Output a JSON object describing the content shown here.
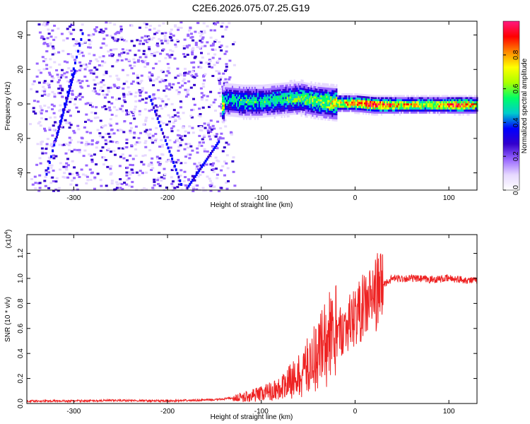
{
  "title": "C2E6.2026.075.07.25.G19",
  "colors": {
    "snr_line": "#ee2222",
    "axis": "#000000",
    "colormap_stops": [
      "#ffffff",
      "#e6d8ff",
      "#9966ff",
      "#3300cc",
      "#0000ff",
      "#00cccc",
      "#00ff66",
      "#aaff00",
      "#ffff00",
      "#ff8800",
      "#ff0000",
      "#ff1a80"
    ]
  },
  "chart_data": [
    {
      "type": "heatmap",
      "title": "C2E6.2026.075.07.25.G19",
      "xlabel": "Height of straight line (km)",
      "ylabel": "Frequency (Hz)",
      "xlim": [
        -350,
        130
      ],
      "ylim": [
        -50,
        48
      ],
      "x_ticks": [
        -300,
        -200,
        -100,
        0,
        100
      ],
      "y_ticks": [
        -40,
        -20,
        0,
        20,
        40
      ],
      "colorbar": {
        "label": "Normalized spectral amplitude",
        "range": [
          0,
          1
        ],
        "ticks": [
          "0.0",
          "0.2",
          "0.4",
          "0.6",
          "0.8"
        ]
      },
      "ridge": [
        {
          "x": -140,
          "y": 3,
          "amp": 0.45
        },
        {
          "x": -120,
          "y": 2,
          "amp": 0.5
        },
        {
          "x": -100,
          "y": 2,
          "amp": 0.5
        },
        {
          "x": -80,
          "y": 3,
          "amp": 0.5
        },
        {
          "x": -60,
          "y": 4,
          "amp": 0.55
        },
        {
          "x": -40,
          "y": 2,
          "amp": 0.6
        },
        {
          "x": -20,
          "y": 1,
          "amp": 0.7
        },
        {
          "x": 0,
          "y": 1,
          "amp": 0.85
        },
        {
          "x": 20,
          "y": 0,
          "amp": 0.9
        },
        {
          "x": 50,
          "y": 0,
          "amp": 0.75
        },
        {
          "x": 80,
          "y": 0,
          "amp": 0.7
        },
        {
          "x": 110,
          "y": 0,
          "amp": 0.9
        },
        {
          "x": 130,
          "y": 0,
          "amp": 0.7
        }
      ]
    },
    {
      "type": "line",
      "xlabel": "Height of straight line (km)",
      "ylabel": "SNR (10 * v/v)",
      "multiplier": "(x10^4)",
      "xlim": [
        -350,
        130
      ],
      "ylim": [
        0,
        1.35
      ],
      "x_ticks": [
        -300,
        -200,
        -100,
        0,
        100
      ],
      "y_ticks": [
        "0.0",
        "0.2",
        "0.4",
        "0.6",
        "0.8",
        "1.0",
        "1.2"
      ],
      "series": [
        {
          "x": [
            -350,
            -300,
            -250,
            -200,
            -150,
            -120,
            -100,
            -80,
            -70,
            -60,
            -50,
            -40,
            -30,
            -20,
            -10,
            0,
            10,
            20,
            30,
            40,
            60,
            80,
            100,
            130
          ],
          "y": [
            0.02,
            0.02,
            0.025,
            0.02,
            0.03,
            0.05,
            0.08,
            0.12,
            0.17,
            0.22,
            0.3,
            0.4,
            0.5,
            0.55,
            0.62,
            0.7,
            0.78,
            0.86,
            0.95,
            1.0,
            1.0,
            0.99,
            1.0,
            0.98
          ]
        }
      ]
    }
  ]
}
